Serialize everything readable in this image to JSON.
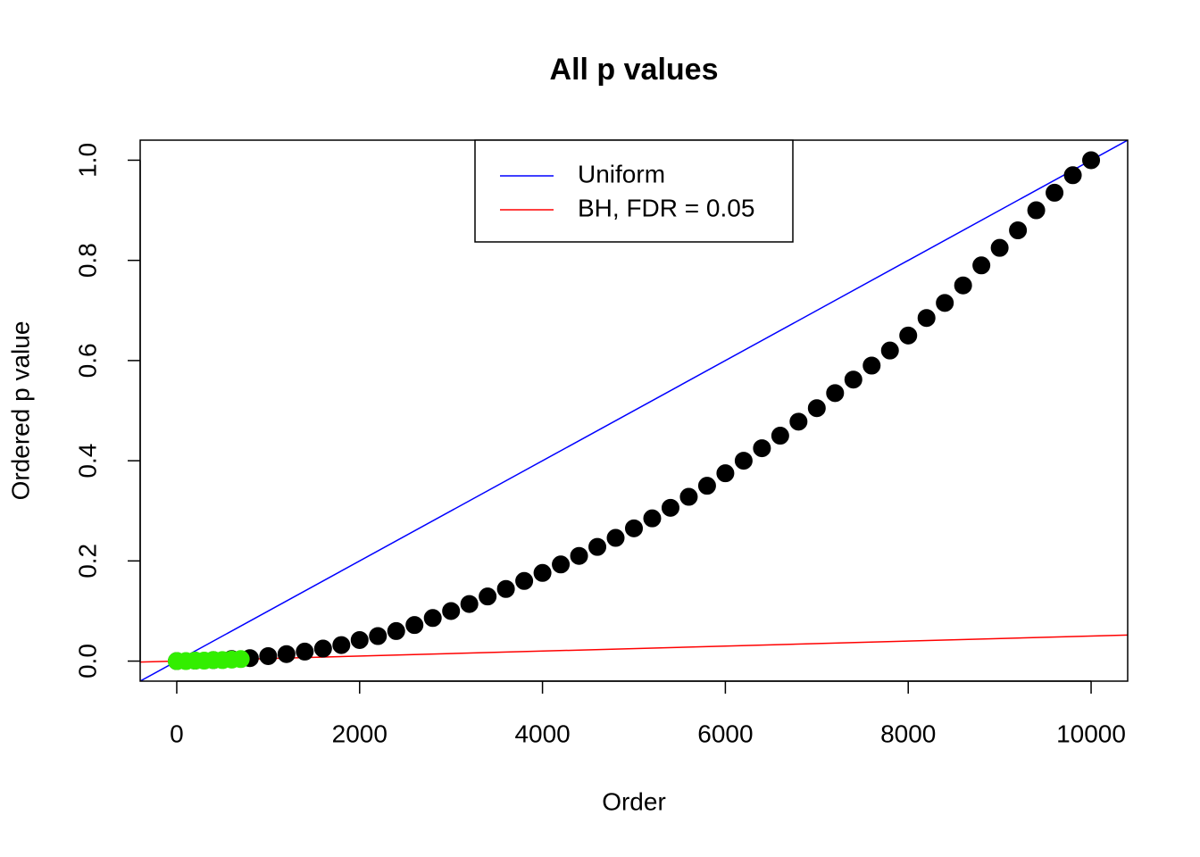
{
  "chart_data": {
    "type": "scatter",
    "title": "All p values",
    "x_label": "Order",
    "y_label": "Ordered p value",
    "xlim": [
      -400,
      10400
    ],
    "ylim": [
      -0.04,
      1.04
    ],
    "xticks": [
      0,
      2000,
      4000,
      6000,
      8000,
      10000
    ],
    "yticks": [
      {
        "value": 0,
        "label": "0.0"
      },
      {
        "value": 0.2,
        "label": "0.2"
      },
      {
        "value": 0.4,
        "label": "0.4"
      },
      {
        "value": 0.6,
        "label": "0.6"
      },
      {
        "value": 0.8,
        "label": "0.8"
      },
      {
        "value": 1,
        "label": "1.0"
      }
    ],
    "legend_position": "top",
    "series": [
      {
        "color": "#000000",
        "x": [
          0,
          200,
          400,
          600,
          800,
          1000,
          1200,
          1400,
          1600,
          1800,
          2000,
          2200,
          2400,
          2600,
          2800,
          3000,
          3200,
          3400,
          3600,
          3800,
          4000,
          4200,
          4400,
          4600,
          4800,
          5000,
          5200,
          5400,
          5600,
          5800,
          6000,
          6200,
          6400,
          6600,
          6800,
          7000,
          7200,
          7400,
          7600,
          7800,
          8000,
          8200,
          8400,
          8600,
          8800,
          9000,
          9200,
          9400,
          9600,
          9800,
          10000
        ],
        "values": [
          0,
          0.001,
          0.002,
          0.004,
          0.006,
          0.01,
          0.014,
          0.019,
          0.025,
          0.032,
          0.042,
          0.05,
          0.06,
          0.072,
          0.086,
          0.1,
          0.114,
          0.129,
          0.144,
          0.16,
          0.176,
          0.193,
          0.21,
          0.228,
          0.246,
          0.265,
          0.285,
          0.306,
          0.328,
          0.35,
          0.375,
          0.4,
          0.425,
          0.45,
          0.478,
          0.505,
          0.535,
          0.562,
          0.59,
          0.62,
          0.65,
          0.685,
          0.715,
          0.75,
          0.79,
          0.825,
          0.86,
          0.9,
          0.935,
          0.97,
          1
        ]
      },
      {
        "color": "#33ee00",
        "x": [
          0,
          100,
          200,
          300,
          400,
          500,
          600,
          700
        ],
        "values": [
          0,
          0,
          0.001,
          0.001,
          0.002,
          0.002,
          0.003,
          0.004
        ]
      }
    ],
    "lines": [
      {
        "name": "Uniform",
        "color": "#0000ff",
        "x": [
          -400,
          10400
        ],
        "values": [
          -0.04,
          1.04
        ]
      },
      {
        "name": "BH, FDR = 0.05",
        "color": "#ff0000",
        "x": [
          -400,
          10400
        ],
        "values": [
          -0.002,
          0.052
        ]
      }
    ]
  }
}
